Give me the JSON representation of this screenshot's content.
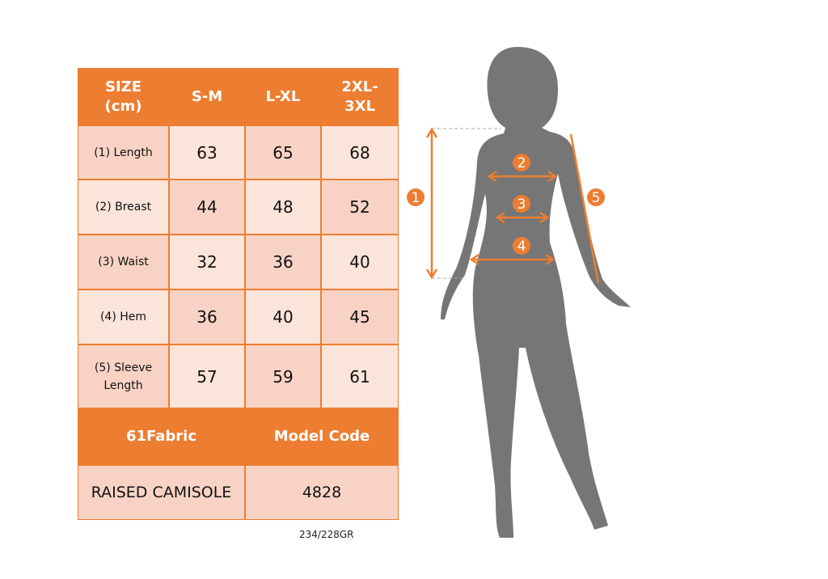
{
  "table": {
    "headers": [
      "SIZE\n(cm)",
      "S-M",
      "L-XL",
      "2XL-\n3XL"
    ],
    "rows": [
      {
        "label": "(1) Length",
        "values": [
          "63",
          "65",
          "68"
        ]
      },
      {
        "label": "(2) Breast",
        "values": [
          "44",
          "48",
          "52"
        ]
      },
      {
        "label": "(3) Waist",
        "values": [
          "32",
          "36",
          "40"
        ]
      },
      {
        "label": "(4) Hem",
        "values": [
          "36",
          "40",
          "45"
        ]
      },
      {
        "label": "(5) Sleeve Length",
        "values": [
          "57",
          "59",
          "61"
        ]
      }
    ],
    "footer_headers": [
      "61Fabric",
      "Model Code"
    ],
    "footer_values": [
      "RAISED CAMISOLE",
      "4828"
    ]
  },
  "weight_code": "234/228GR",
  "markers": [
    "1",
    "2",
    "3",
    "4",
    "5"
  ],
  "colors": {
    "accent": "#ed7d31",
    "silhouette": "#767676",
    "cell_dark": "#f8d3c5",
    "cell_light": "#fbe4da"
  }
}
